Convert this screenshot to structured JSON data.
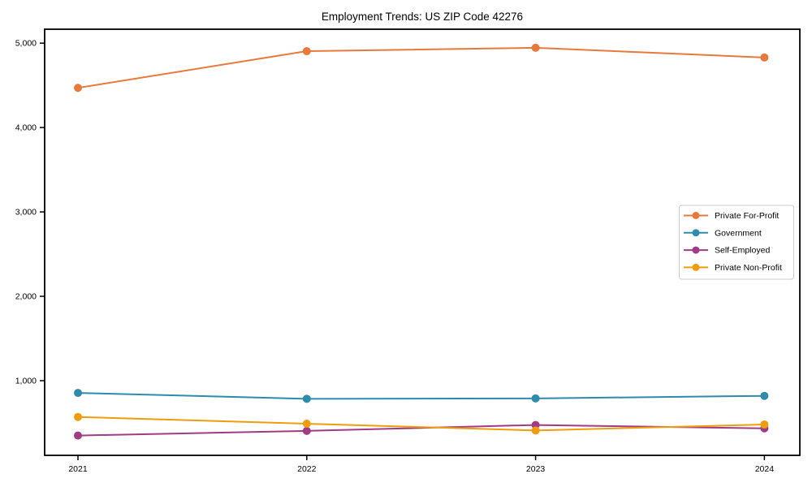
{
  "figure": {
    "background": "#ffffff"
  },
  "chart_data": {
    "type": "line",
    "title": "Employment Trends: US ZIP Code 42276",
    "categories": [
      "2021",
      "2022",
      "2023",
      "2024"
    ],
    "series": [
      {
        "name": "Private For-Profit",
        "color": "#E8793D",
        "values": [
          4470,
          4905,
          4945,
          4830
        ]
      },
      {
        "name": "Government",
        "color": "#2E8BAB",
        "values": [
          855,
          785,
          790,
          820
        ]
      },
      {
        "name": "Self-Employed",
        "color": "#A23B85",
        "values": [
          350,
          405,
          475,
          435
        ]
      },
      {
        "name": "Private Non-Profit",
        "color": "#F09D0D",
        "values": [
          570,
          490,
          410,
          480
        ]
      }
    ],
    "xlabel": "",
    "ylabel": "",
    "yticks": [
      1000,
      2000,
      3000,
      4000,
      5000
    ],
    "ytick_labels": [
      "1,000",
      "2,000",
      "3,000",
      "4,000",
      "5,000"
    ],
    "ylim": [
      115,
      5165
    ],
    "grid": false,
    "legend_position": "center right",
    "marker": "circle",
    "axis_color": "#000000",
    "text_color": "#000000",
    "legend_border_color": "#cccccc",
    "legend_background": "#ffffff"
  }
}
